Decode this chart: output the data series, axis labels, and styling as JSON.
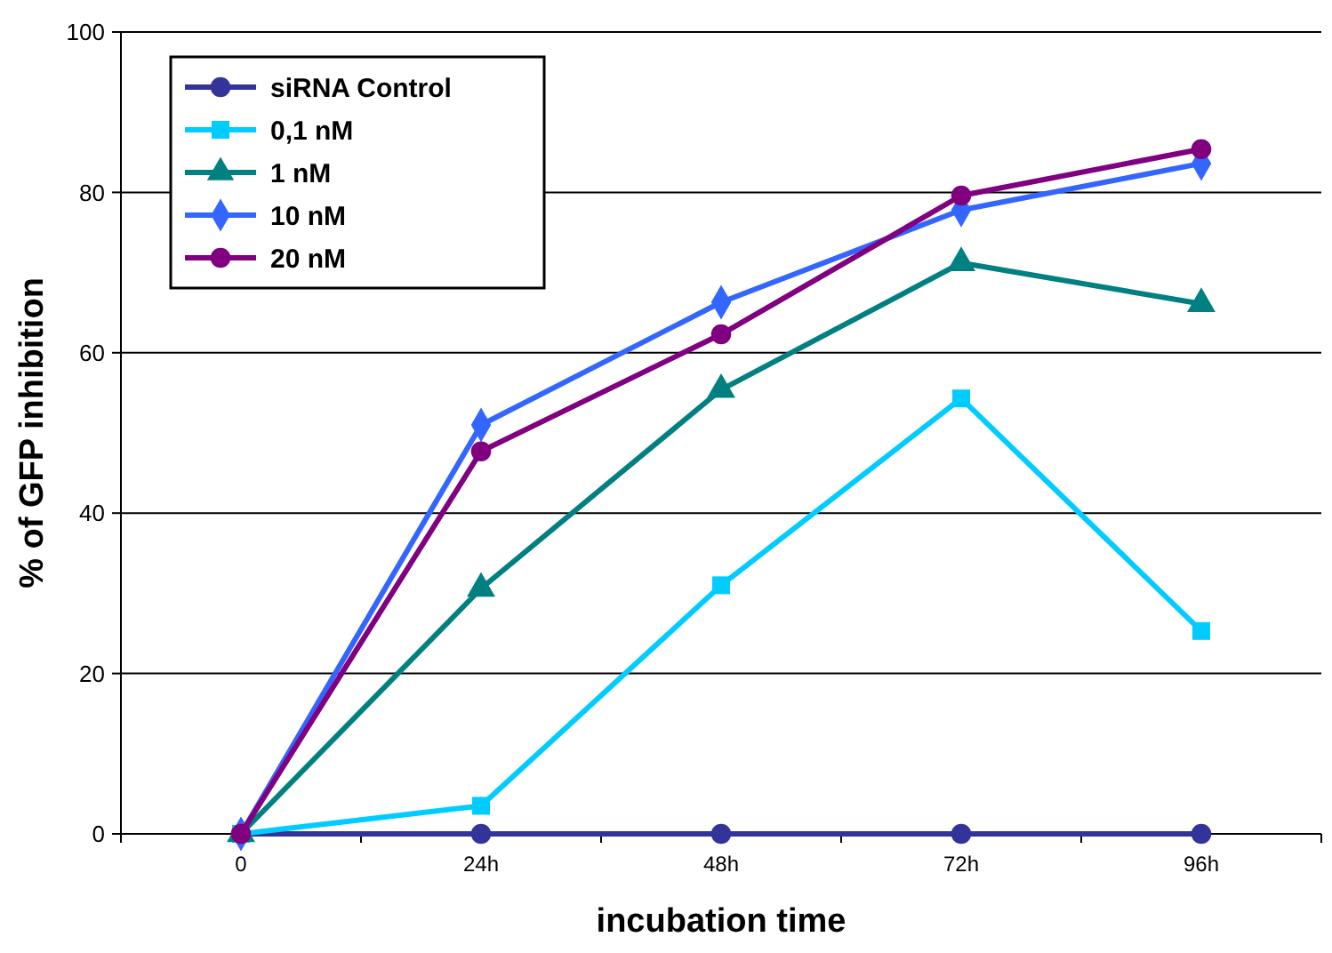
{
  "chart_data": {
    "type": "line",
    "xlabel": "incubation time",
    "ylabel": "% of GFP inhibition",
    "categories": [
      "0",
      "24h",
      "48h",
      "72h",
      "96h"
    ],
    "ylim": [
      0,
      100
    ],
    "yticks": [
      0,
      20,
      40,
      60,
      80,
      100
    ],
    "grid": "y",
    "legend": "top left",
    "line_style": "solid",
    "series": [
      {
        "name": "siRNA Control",
        "color": "#333399",
        "marker": "circle",
        "values": [
          0,
          0,
          0,
          0,
          0
        ]
      },
      {
        "name": "0,1 nM",
        "color": "#00ccff",
        "marker": "square",
        "values": [
          0,
          3.5,
          31,
          54.3,
          25.3
        ]
      },
      {
        "name": "1 nM",
        "color": "#008080",
        "marker": "triangle",
        "values": [
          0,
          30.6,
          55.4,
          71.2,
          66.1
        ]
      },
      {
        "name": "10 nM",
        "color": "#3366ff",
        "marker": "diamond",
        "values": [
          0,
          51,
          66.3,
          77.8,
          83.6
        ]
      },
      {
        "name": "20 nM",
        "color": "#800080",
        "marker": "circle",
        "values": [
          0,
          47.7,
          62.3,
          79.6,
          85.4
        ]
      }
    ]
  }
}
